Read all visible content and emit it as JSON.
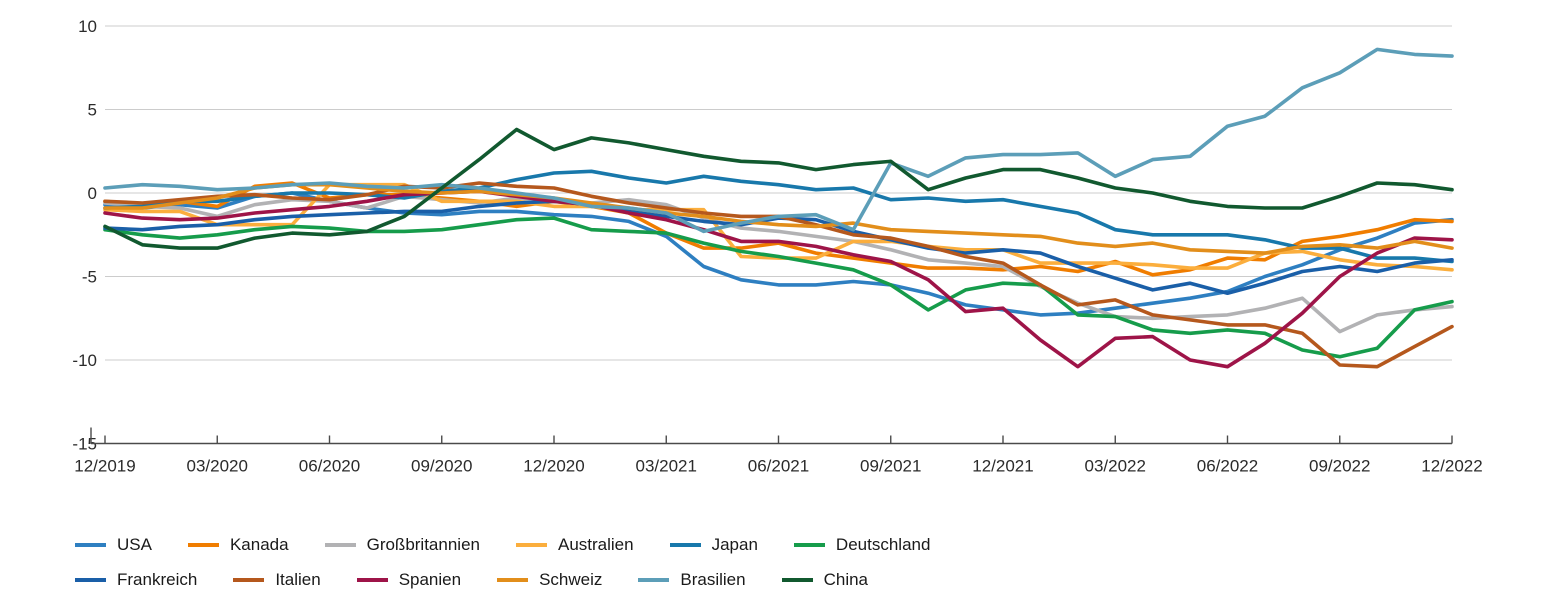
{
  "chart_data": {
    "type": "line",
    "title": "",
    "xlabel": "",
    "ylabel": "",
    "x_unit": "month",
    "x_tick_labels": [
      "12/2019",
      "03/2020",
      "06/2020",
      "09/2020",
      "12/2020",
      "03/2021",
      "06/2021",
      "09/2021",
      "12/2021",
      "03/2022",
      "06/2022",
      "09/2022",
      "12/2022"
    ],
    "x_tick_every_n_points": 3,
    "y_ticks": [
      10,
      5,
      0,
      -5,
      -10,
      -15
    ],
    "ylim": [
      -15,
      10
    ],
    "grid": "horizontal",
    "legend_position": "bottom-left",
    "legend_rows": [
      [
        "USA",
        "Kanada",
        "Großbritannien",
        "Australien",
        "Japan",
        "Deutschland"
      ],
      [
        "Frankreich",
        "Italien",
        "Spanien",
        "Schweiz",
        "Brasilien",
        "China"
      ]
    ],
    "colors": {
      "grid": "#cccccc",
      "axis": "#4a4a4a",
      "tick_label": "#2b2b2b"
    },
    "series": [
      {
        "name": "USA",
        "color": "#2e7fc1",
        "values": [
          -0.7,
          -0.9,
          -0.7,
          -0.9,
          -0.2,
          0.0,
          -0.5,
          -0.9,
          -1.2,
          -1.3,
          -1.1,
          -1.1,
          -1.3,
          -1.4,
          -1.7,
          -2.6,
          -4.4,
          -5.2,
          -5.5,
          -5.5,
          -5.3,
          -5.5,
          -6.0,
          -6.7,
          -7.0,
          -7.3,
          -7.2,
          -6.9,
          -6.6,
          -6.3,
          -5.9,
          -5.0,
          -4.3,
          -3.4,
          -2.7,
          -1.8,
          -1.6
        ]
      },
      {
        "name": "Kanada",
        "color": "#f07d00",
        "values": [
          -0.5,
          -0.7,
          -0.5,
          -0.8,
          0.4,
          0.6,
          -0.3,
          -0.1,
          -0.1,
          -0.3,
          -0.5,
          -0.8,
          -0.5,
          -0.8,
          -1.2,
          -2.4,
          -3.3,
          -3.3,
          -3.0,
          -3.6,
          -3.9,
          -4.2,
          -4.5,
          -4.5,
          -4.6,
          -4.4,
          -4.7,
          -4.1,
          -4.9,
          -4.6,
          -3.9,
          -4.0,
          -2.9,
          -2.6,
          -2.2,
          -1.6,
          -1.7
        ]
      },
      {
        "name": "Großbritannien",
        "color": "#b2b2b4",
        "values": [
          -0.6,
          -0.8,
          -0.9,
          -1.4,
          -0.7,
          -0.4,
          -0.5,
          -0.9,
          -0.2,
          -0.4,
          -0.6,
          -0.3,
          -0.5,
          -0.6,
          -0.4,
          -0.7,
          -1.5,
          -2.1,
          -2.3,
          -2.6,
          -2.9,
          -3.4,
          -4.0,
          -4.2,
          -4.4,
          -5.6,
          -6.6,
          -7.4,
          -7.5,
          -7.4,
          -7.3,
          -6.9,
          -6.3,
          -8.3,
          -7.3,
          -7.0,
          -6.8
        ]
      },
      {
        "name": "Australien",
        "color": "#fbae3d",
        "values": [
          -1.0,
          -1.1,
          -1.1,
          -1.9,
          -1.9,
          -1.9,
          0.5,
          0.5,
          0.5,
          -0.5,
          -0.5,
          -0.5,
          -0.8,
          -0.8,
          -1.0,
          -1.0,
          -1.0,
          -3.8,
          -3.9,
          -3.9,
          -2.9,
          -2.9,
          -3.2,
          -3.4,
          -3.4,
          -4.2,
          -4.2,
          -4.2,
          -4.3,
          -4.5,
          -4.5,
          -3.6,
          -3.5,
          -4.0,
          -4.3,
          -4.4,
          -4.6
        ]
      },
      {
        "name": "Japan",
        "color": "#1878ab",
        "values": [
          -0.9,
          -0.8,
          -0.5,
          -0.5,
          -0.2,
          0.0,
          0.0,
          -0.1,
          -0.3,
          0.1,
          0.3,
          0.8,
          1.2,
          1.3,
          0.9,
          0.6,
          1.0,
          0.7,
          0.5,
          0.2,
          0.3,
          -0.4,
          -0.3,
          -0.5,
          -0.4,
          -0.8,
          -1.2,
          -2.2,
          -2.5,
          -2.5,
          -2.5,
          -2.8,
          -3.3,
          -3.3,
          -3.9,
          -3.9,
          -4.1
        ]
      },
      {
        "name": "Deutschland",
        "color": "#169c4b",
        "values": [
          -2.2,
          -2.5,
          -2.7,
          -2.5,
          -2.2,
          -2.0,
          -2.1,
          -2.3,
          -2.3,
          -2.2,
          -1.9,
          -1.6,
          -1.5,
          -2.2,
          -2.3,
          -2.4,
          -3.0,
          -3.5,
          -3.8,
          -4.2,
          -4.6,
          -5.5,
          -7.0,
          -5.8,
          -5.4,
          -5.5,
          -7.3,
          -7.4,
          -8.2,
          -8.4,
          -8.2,
          -8.4,
          -9.4,
          -9.8,
          -9.3,
          -7.0,
          -6.5
        ]
      },
      {
        "name": "Frankreich",
        "color": "#1a5fa8",
        "values": [
          -2.1,
          -2.2,
          -2.0,
          -1.9,
          -1.6,
          -1.4,
          -1.3,
          -1.2,
          -1.1,
          -1.1,
          -0.8,
          -0.6,
          -0.5,
          -0.7,
          -1.1,
          -1.4,
          -1.7,
          -1.9,
          -1.5,
          -1.6,
          -2.3,
          -2.8,
          -3.3,
          -3.6,
          -3.4,
          -3.6,
          -4.4,
          -5.1,
          -5.8,
          -5.4,
          -6.0,
          -5.4,
          -4.7,
          -4.4,
          -4.7,
          -4.2,
          -4.0
        ]
      },
      {
        "name": "Italien",
        "color": "#b5581d",
        "values": [
          -0.5,
          -0.6,
          -0.4,
          -0.2,
          -0.1,
          -0.3,
          -0.4,
          -0.1,
          0.4,
          0.3,
          0.6,
          0.4,
          0.3,
          -0.2,
          -0.6,
          -0.9,
          -1.2,
          -1.4,
          -1.4,
          -1.9,
          -2.5,
          -2.7,
          -3.2,
          -3.8,
          -4.2,
          -5.5,
          -6.7,
          -6.4,
          -7.3,
          -7.6,
          -7.9,
          -7.9,
          -8.4,
          -10.3,
          -10.4,
          -9.2,
          -8.0
        ]
      },
      {
        "name": "Spanien",
        "color": "#9e1448",
        "values": [
          -1.2,
          -1.5,
          -1.6,
          -1.5,
          -1.2,
          -1.0,
          -0.8,
          -0.5,
          -0.1,
          0.0,
          0.1,
          -0.2,
          -0.5,
          -0.7,
          -1.2,
          -1.6,
          -2.2,
          -2.9,
          -2.9,
          -3.2,
          -3.7,
          -4.1,
          -5.2,
          -7.1,
          -6.9,
          -8.8,
          -10.4,
          -8.7,
          -8.6,
          -10.0,
          -10.4,
          -9.0,
          -7.2,
          -5.0,
          -3.6,
          -2.7,
          -2.8
        ]
      },
      {
        "name": "Schweiz",
        "color": "#e28e1b",
        "values": [
          -0.9,
          -0.9,
          -0.6,
          -0.3,
          0.3,
          0.5,
          0.5,
          0.3,
          0.1,
          0.0,
          0.1,
          -0.1,
          -0.3,
          -0.6,
          -0.9,
          -1.2,
          -1.4,
          -1.7,
          -1.9,
          -2.0,
          -1.8,
          -2.2,
          -2.3,
          -2.4,
          -2.5,
          -2.6,
          -3.0,
          -3.2,
          -3.0,
          -3.4,
          -3.5,
          -3.6,
          -3.2,
          -3.1,
          -3.3,
          -2.9,
          -3.3
        ]
      },
      {
        "name": "Brasilien",
        "color": "#5c9eb8",
        "values": [
          0.3,
          0.5,
          0.4,
          0.2,
          0.3,
          0.5,
          0.6,
          0.4,
          0.3,
          0.5,
          0.3,
          0.0,
          -0.3,
          -0.8,
          -0.9,
          -1.2,
          -2.3,
          -1.8,
          -1.4,
          -1.3,
          -2.2,
          1.8,
          1.0,
          2.1,
          2.3,
          2.3,
          2.4,
          1.0,
          2.0,
          2.2,
          4.0,
          4.6,
          6.3,
          7.2,
          8.6,
          8.3,
          8.2
        ]
      },
      {
        "name": "China",
        "color": "#11592f",
        "values": [
          -2.0,
          -3.1,
          -3.3,
          -3.3,
          -2.7,
          -2.4,
          -2.5,
          -2.3,
          -1.4,
          0.3,
          2.0,
          3.8,
          2.6,
          3.3,
          3.0,
          2.6,
          2.2,
          1.9,
          1.8,
          1.4,
          1.7,
          1.9,
          0.2,
          0.9,
          1.4,
          1.4,
          0.9,
          0.3,
          0.0,
          -0.5,
          -0.8,
          -0.9,
          -0.9,
          -0.2,
          0.6,
          0.5,
          0.2
        ]
      }
    ]
  }
}
